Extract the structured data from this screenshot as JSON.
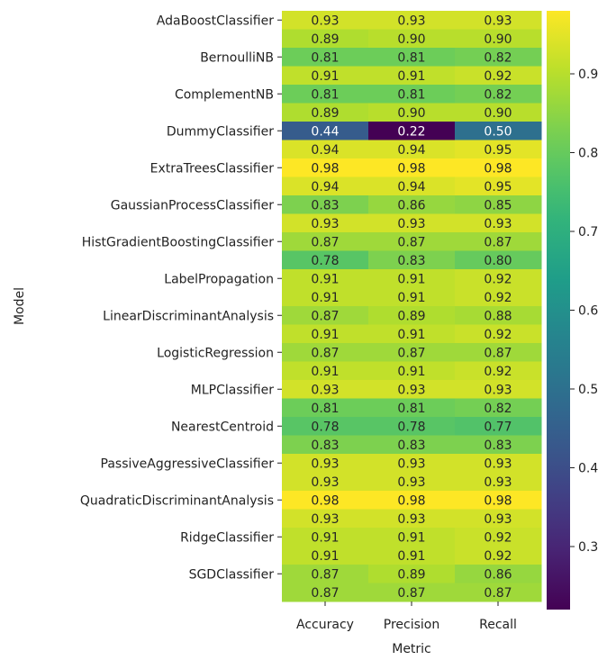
{
  "chart_data": {
    "type": "heatmap",
    "xlabel": "Metric",
    "ylabel": "Model",
    "columns": [
      "Accuracy",
      "Precision",
      "Recall"
    ],
    "row_tick_labels": [
      "AdaBoostClassifier",
      "BernoulliNB",
      "ComplementNB",
      "DummyClassifier",
      "ExtraTreesClassifier",
      "GaussianProcessClassifier",
      "HistGradientBoostingClassifier",
      "LabelPropagation",
      "LinearDiscriminantAnalysis",
      "LogisticRegression",
      "MLPClassifier",
      "NearestCentroid",
      "PassiveAggressiveClassifier",
      "QuadraticDiscriminantAnalysis",
      "RidgeClassifier",
      "SGDClassifier"
    ],
    "row_tick_every": 2,
    "values": [
      [
        0.93,
        0.93,
        0.93
      ],
      [
        0.89,
        0.9,
        0.9
      ],
      [
        0.81,
        0.81,
        0.82
      ],
      [
        0.91,
        0.91,
        0.92
      ],
      [
        0.81,
        0.81,
        0.82
      ],
      [
        0.89,
        0.9,
        0.9
      ],
      [
        0.44,
        0.22,
        0.5
      ],
      [
        0.94,
        0.94,
        0.95
      ],
      [
        0.98,
        0.98,
        0.98
      ],
      [
        0.94,
        0.94,
        0.95
      ],
      [
        0.83,
        0.86,
        0.85
      ],
      [
        0.93,
        0.93,
        0.93
      ],
      [
        0.87,
        0.87,
        0.87
      ],
      [
        0.78,
        0.83,
        0.8
      ],
      [
        0.91,
        0.91,
        0.92
      ],
      [
        0.91,
        0.91,
        0.92
      ],
      [
        0.87,
        0.89,
        0.88
      ],
      [
        0.91,
        0.91,
        0.92
      ],
      [
        0.87,
        0.87,
        0.87
      ],
      [
        0.91,
        0.91,
        0.92
      ],
      [
        0.93,
        0.93,
        0.93
      ],
      [
        0.81,
        0.81,
        0.82
      ],
      [
        0.78,
        0.78,
        0.77
      ],
      [
        0.83,
        0.83,
        0.83
      ],
      [
        0.93,
        0.93,
        0.93
      ],
      [
        0.93,
        0.93,
        0.93
      ],
      [
        0.98,
        0.98,
        0.98
      ],
      [
        0.93,
        0.93,
        0.93
      ],
      [
        0.91,
        0.91,
        0.92
      ],
      [
        0.91,
        0.91,
        0.92
      ],
      [
        0.87,
        0.89,
        0.86
      ],
      [
        0.87,
        0.87,
        0.87
      ]
    ],
    "value_format_decimals": 2,
    "colormap": "viridis",
    "color_range": [
      0.22,
      0.98
    ],
    "colorbar_ticks": [
      0.3,
      0.4,
      0.5,
      0.6,
      0.7,
      0.8,
      0.9
    ],
    "grid": false,
    "legend": "colorbar-right"
  }
}
